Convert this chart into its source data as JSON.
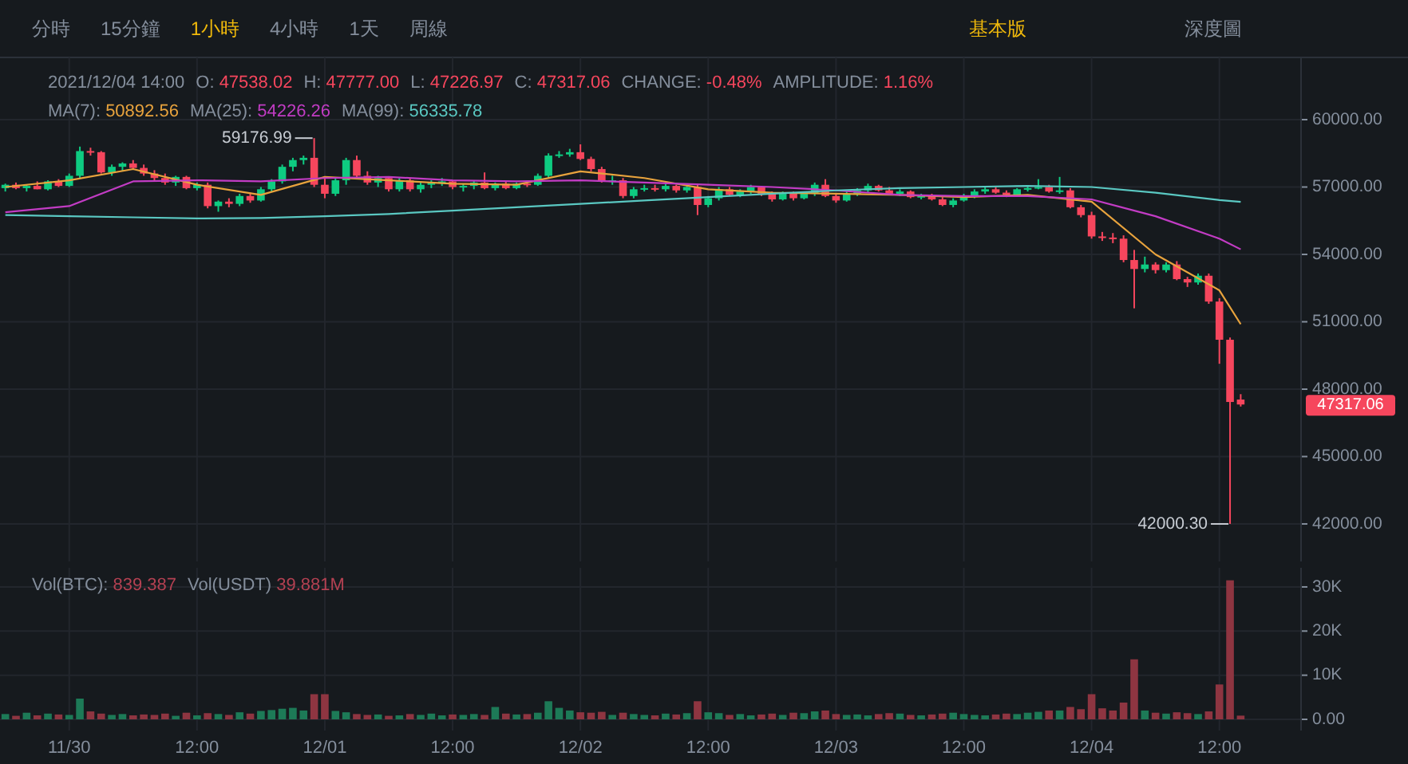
{
  "chart_data": [
    {
      "type": "candlestick",
      "x": [
        "2021-11-29T18:00",
        "2021-11-29T19:00",
        "2021-11-29T20:00",
        "2021-11-29T21:00",
        "2021-11-29T22:00",
        "2021-11-29T23:00",
        "2021-11-30T00:00",
        "2021-11-30T01:00",
        "2021-11-30T02:00",
        "2021-11-30T03:00",
        "2021-11-30T04:00",
        "2021-11-30T05:00",
        "2021-11-30T06:00",
        "2021-11-30T07:00",
        "2021-11-30T08:00",
        "2021-11-30T09:00",
        "2021-11-30T10:00",
        "2021-11-30T11:00",
        "2021-11-30T12:00",
        "2021-11-30T13:00",
        "2021-11-30T14:00",
        "2021-11-30T15:00",
        "2021-11-30T16:00",
        "2021-11-30T17:00",
        "2021-11-30T18:00",
        "2021-11-30T19:00",
        "2021-11-30T20:00",
        "2021-11-30T21:00",
        "2021-11-30T22:00",
        "2021-11-30T23:00",
        "2021-12-01T00:00",
        "2021-12-01T01:00",
        "2021-12-01T02:00",
        "2021-12-01T03:00",
        "2021-12-01T04:00",
        "2021-12-01T05:00",
        "2021-12-01T06:00",
        "2021-12-01T07:00",
        "2021-12-01T08:00",
        "2021-12-01T09:00",
        "2021-12-01T10:00",
        "2021-12-01T11:00",
        "2021-12-01T12:00",
        "2021-12-01T13:00",
        "2021-12-01T14:00",
        "2021-12-01T15:00",
        "2021-12-01T16:00",
        "2021-12-01T17:00",
        "2021-12-01T18:00",
        "2021-12-01T19:00",
        "2021-12-01T20:00",
        "2021-12-01T21:00",
        "2021-12-01T22:00",
        "2021-12-01T23:00",
        "2021-12-02T00:00",
        "2021-12-02T01:00",
        "2021-12-02T02:00",
        "2021-12-02T03:00",
        "2021-12-02T04:00",
        "2021-12-02T05:00",
        "2021-12-02T06:00",
        "2021-12-02T07:00",
        "2021-12-02T08:00",
        "2021-12-02T09:00",
        "2021-12-02T10:00",
        "2021-12-02T11:00",
        "2021-12-02T12:00",
        "2021-12-02T13:00",
        "2021-12-02T14:00",
        "2021-12-02T15:00",
        "2021-12-02T16:00",
        "2021-12-02T17:00",
        "2021-12-02T18:00",
        "2021-12-02T19:00",
        "2021-12-02T20:00",
        "2021-12-02T21:00",
        "2021-12-02T22:00",
        "2021-12-02T23:00",
        "2021-12-03T00:00",
        "2021-12-03T01:00",
        "2021-12-03T02:00",
        "2021-12-03T03:00",
        "2021-12-03T04:00",
        "2021-12-03T05:00",
        "2021-12-03T06:00",
        "2021-12-03T07:00",
        "2021-12-03T08:00",
        "2021-12-03T09:00",
        "2021-12-03T10:00",
        "2021-12-03T11:00",
        "2021-12-03T12:00",
        "2021-12-03T13:00",
        "2021-12-03T14:00",
        "2021-12-03T15:00",
        "2021-12-03T16:00",
        "2021-12-03T17:00",
        "2021-12-03T18:00",
        "2021-12-03T19:00",
        "2021-12-03T20:00",
        "2021-12-03T21:00",
        "2021-12-03T22:00",
        "2021-12-03T23:00",
        "2021-12-04T00:00",
        "2021-12-04T01:00",
        "2021-12-04T02:00",
        "2021-12-04T03:00",
        "2021-12-04T04:00",
        "2021-12-04T05:00",
        "2021-12-04T06:00",
        "2021-12-04T07:00",
        "2021-12-04T08:00",
        "2021-12-04T09:00",
        "2021-12-04T10:00",
        "2021-12-04T11:00",
        "2021-12-04T12:00",
        "2021-12-04T13:00",
        "2021-12-04T14:00"
      ],
      "ohlc": [
        [
          56950,
          57150,
          56800,
          57100
        ],
        [
          57100,
          57200,
          56900,
          56950
        ],
        [
          56950,
          57100,
          56800,
          57050
        ],
        [
          57050,
          57250,
          56900,
          56900
        ],
        [
          56900,
          57300,
          56850,
          57250
        ],
        [
          57250,
          57350,
          57000,
          57050
        ],
        [
          57050,
          57600,
          57000,
          57500
        ],
        [
          57500,
          58800,
          57400,
          58600
        ],
        [
          58600,
          58750,
          58400,
          58550
        ],
        [
          58550,
          58600,
          57600,
          57650
        ],
        [
          57650,
          58000,
          57500,
          57900
        ],
        [
          57900,
          58100,
          57700,
          58050
        ],
        [
          58050,
          58200,
          57800,
          57850
        ],
        [
          57850,
          58000,
          57500,
          57600
        ],
        [
          57600,
          57750,
          57300,
          57400
        ],
        [
          57400,
          57600,
          57100,
          57200
        ],
        [
          57200,
          57500,
          57050,
          57450
        ],
        [
          57450,
          57500,
          56900,
          56950
        ],
        [
          56950,
          57200,
          56850,
          57100
        ],
        [
          57100,
          57200,
          56050,
          56150
        ],
        [
          56150,
          56400,
          55900,
          56350
        ],
        [
          56350,
          56500,
          56100,
          56250
        ],
        [
          56250,
          56700,
          56150,
          56600
        ],
        [
          56600,
          56750,
          56300,
          56400
        ],
        [
          56400,
          57000,
          56350,
          56900
        ],
        [
          56900,
          57350,
          56800,
          57250
        ],
        [
          57250,
          58000,
          57150,
          57900
        ],
        [
          57900,
          58300,
          57700,
          58200
        ],
        [
          58200,
          58400,
          58000,
          58300
        ],
        [
          58300,
          59176.99,
          57000,
          57100
        ],
        [
          57100,
          57400,
          56500,
          56700
        ],
        [
          56700,
          57400,
          56600,
          57300
        ],
        [
          57300,
          58300,
          57100,
          58200
        ],
        [
          58200,
          58400,
          57400,
          57500
        ],
        [
          57500,
          57700,
          57100,
          57200
        ],
        [
          57200,
          57500,
          57000,
          57400
        ],
        [
          57400,
          57450,
          56800,
          56900
        ],
        [
          56900,
          57400,
          56800,
          57300
        ],
        [
          57300,
          57400,
          56800,
          56900
        ],
        [
          56900,
          57200,
          56750,
          57100
        ],
        [
          57100,
          57300,
          56950,
          57200
        ],
        [
          57200,
          57400,
          57050,
          57250
        ],
        [
          57250,
          57300,
          56900,
          57000
        ],
        [
          57000,
          57150,
          56800,
          57050
        ],
        [
          57050,
          57300,
          56900,
          57200
        ],
        [
          57200,
          57650,
          56900,
          56950
        ],
        [
          56950,
          57200,
          56850,
          57150
        ],
        [
          57150,
          57250,
          56900,
          56950
        ],
        [
          56950,
          57200,
          56900,
          57150
        ],
        [
          57150,
          57300,
          57000,
          57100
        ],
        [
          57100,
          57600,
          57050,
          57500
        ],
        [
          57500,
          58500,
          57400,
          58400
        ],
        [
          58400,
          58600,
          58300,
          58450
        ],
        [
          58450,
          58700,
          58350,
          58550
        ],
        [
          58550,
          58900,
          58200,
          58250
        ],
        [
          58250,
          58350,
          57700,
          57800
        ],
        [
          57800,
          57900,
          57200,
          57250
        ],
        [
          57250,
          57500,
          57100,
          57300
        ],
        [
          57300,
          57400,
          56500,
          56600
        ],
        [
          56600,
          57000,
          56500,
          56900
        ],
        [
          56900,
          57100,
          56800,
          56950
        ],
        [
          56950,
          57100,
          56800,
          56900
        ],
        [
          56900,
          57150,
          56800,
          57050
        ],
        [
          57050,
          57100,
          56750,
          56850
        ],
        [
          56850,
          57100,
          56750,
          57000
        ],
        [
          57000,
          57100,
          55750,
          56200
        ],
        [
          56200,
          56600,
          56100,
          56500
        ],
        [
          56500,
          57000,
          56400,
          56900
        ],
        [
          56900,
          57000,
          56600,
          56650
        ],
        [
          56650,
          56900,
          56550,
          56800
        ],
        [
          56800,
          57100,
          56700,
          57000
        ],
        [
          57000,
          57050,
          56600,
          56700
        ],
        [
          56700,
          56800,
          56350,
          56450
        ],
        [
          56450,
          56800,
          56400,
          56700
        ],
        [
          56700,
          56800,
          56400,
          56500
        ],
        [
          56500,
          56800,
          56450,
          56700
        ],
        [
          56700,
          57200,
          56600,
          57100
        ],
        [
          57100,
          57350,
          56550,
          56600
        ],
        [
          56600,
          56700,
          56300,
          56400
        ],
        [
          56400,
          56800,
          56350,
          56700
        ],
        [
          56700,
          56950,
          56600,
          56850
        ],
        [
          56850,
          57150,
          56750,
          57050
        ],
        [
          57050,
          57100,
          56800,
          56850
        ],
        [
          56850,
          57000,
          56650,
          56700
        ],
        [
          56700,
          56900,
          56600,
          56800
        ],
        [
          56800,
          56850,
          56500,
          56550
        ],
        [
          56550,
          56700,
          56450,
          56600
        ],
        [
          56600,
          56700,
          56400,
          56450
        ],
        [
          56450,
          56550,
          56150,
          56200
        ],
        [
          56200,
          56500,
          56100,
          56400
        ],
        [
          56400,
          56700,
          56350,
          56600
        ],
        [
          56600,
          56900,
          56500,
          56800
        ],
        [
          56800,
          57000,
          56700,
          56900
        ],
        [
          56900,
          57000,
          56700,
          56750
        ],
        [
          56750,
          56850,
          56550,
          56650
        ],
        [
          56650,
          56950,
          56600,
          56900
        ],
        [
          56900,
          57050,
          56800,
          56950
        ],
        [
          56950,
          57350,
          56900,
          57000
        ],
        [
          57000,
          57100,
          56750,
          56800
        ],
        [
          56800,
          57450,
          56700,
          56850
        ],
        [
          56850,
          56950,
          56050,
          56100
        ],
        [
          56100,
          56200,
          55650,
          55750
        ],
        [
          55750,
          55900,
          54700,
          54800
        ],
        [
          54800,
          55000,
          54600,
          54750
        ],
        [
          54750,
          54950,
          54500,
          54700
        ],
        [
          54700,
          54850,
          53650,
          53750
        ],
        [
          53750,
          54200,
          51600,
          53350
        ],
        [
          53350,
          53900,
          53200,
          53550
        ],
        [
          53550,
          53650,
          53150,
          53300
        ],
        [
          53300,
          53650,
          53200,
          53550
        ],
        [
          53550,
          53700,
          52850,
          52900
        ],
        [
          52900,
          53000,
          52550,
          52750
        ],
        [
          52750,
          53150,
          52650,
          53050
        ],
        [
          53050,
          53150,
          51800,
          51900
        ],
        [
          51900,
          52050,
          49130,
          50200
        ],
        [
          50200,
          50300,
          42000.3,
          47430
        ],
        [
          47538.02,
          47777,
          47226.97,
          47317.06
        ]
      ],
      "colors": [
        "#0ecb81",
        "#f6465d",
        "#0ecb81",
        "#f6465d",
        "#0ecb81",
        "#f6465d",
        "#0ecb81",
        "#0ecb81",
        "#f6465d",
        "#f6465d",
        "#0ecb81",
        "#0ecb81",
        "#f6465d",
        "#f6465d",
        "#f6465d",
        "#f6465d",
        "#0ecb81",
        "#f6465d",
        "#0ecb81",
        "#f6465d",
        "#0ecb81",
        "#f6465d",
        "#0ecb81",
        "#f6465d",
        "#0ecb81",
        "#0ecb81",
        "#0ecb81",
        "#0ecb81",
        "#0ecb81",
        "#f6465d",
        "#f6465d",
        "#0ecb81",
        "#0ecb81",
        "#f6465d",
        "#f6465d",
        "#0ecb81",
        "#f6465d",
        "#0ecb81",
        "#f6465d",
        "#0ecb81",
        "#0ecb81",
        "#0ecb81",
        "#f6465d",
        "#0ecb81",
        "#0ecb81",
        "#f6465d",
        "#0ecb81",
        "#f6465d",
        "#0ecb81",
        "#f6465d",
        "#0ecb81",
        "#0ecb81",
        "#0ecb81",
        "#0ecb81",
        "#f6465d",
        "#f6465d",
        "#f6465d",
        "#0ecb81",
        "#f6465d",
        "#0ecb81",
        "#0ecb81",
        "#f6465d",
        "#0ecb81",
        "#f6465d",
        "#0ecb81",
        "#f6465d",
        "#0ecb81",
        "#0ecb81",
        "#f6465d",
        "#0ecb81",
        "#0ecb81",
        "#f6465d",
        "#f6465d",
        "#0ecb81",
        "#f6465d",
        "#0ecb81",
        "#0ecb81",
        "#f6465d",
        "#f6465d",
        "#0ecb81",
        "#0ecb81",
        "#0ecb81",
        "#f6465d",
        "#f6465d",
        "#0ecb81",
        "#f6465d",
        "#0ecb81",
        "#f6465d",
        "#f6465d",
        "#0ecb81",
        "#0ecb81",
        "#0ecb81",
        "#0ecb81",
        "#f6465d",
        "#f6465d",
        "#0ecb81",
        "#0ecb81",
        "#0ecb81",
        "#f6465d",
        "#0ecb81",
        "#f6465d",
        "#f6465d",
        "#f6465d",
        "#f6465d",
        "#f6465d",
        "#f6465d",
        "#f6465d",
        "#0ecb81",
        "#f6465d",
        "#0ecb81",
        "#f6465d",
        "#f6465d",
        "#0ecb81",
        "#f6465d",
        "#f6465d",
        "#f6465d",
        "#f6465d"
      ],
      "series": [
        {
          "type": "line",
          "color": "#e8a33d",
          "x": [
            "2021-11-29T18:00",
            "2021-11-30T00:00",
            "2021-11-30T06:00",
            "2021-11-30T12:00",
            "2021-11-30T18:00",
            "2021-12-01T00:00",
            "2021-12-01T06:00",
            "2021-12-01T12:00",
            "2021-12-01T18:00",
            "2021-12-02T00:00",
            "2021-12-02T06:00",
            "2021-12-02T12:00",
            "2021-12-02T18:00",
            "2021-12-03T00:00",
            "2021-12-03T06:00",
            "2021-12-03T12:00",
            "2021-12-03T18:00",
            "2021-12-04T00:00",
            "2021-12-04T06:00",
            "2021-12-04T12:00",
            "2021-12-04T14:00"
          ],
          "values": [
            57000,
            57300,
            57800,
            57100,
            56650,
            57450,
            57300,
            57150,
            57100,
            57700,
            57400,
            56900,
            56750,
            56700,
            56650,
            56550,
            56650,
            56350,
            54000,
            52400,
            50892.56
          ]
        },
        {
          "type": "line",
          "color": "#c23cc4",
          "x": [
            "2021-11-29T18:00",
            "2021-11-30T00:00",
            "2021-11-30T06:00",
            "2021-11-30T12:00",
            "2021-11-30T18:00",
            "2021-12-01T00:00",
            "2021-12-01T06:00",
            "2021-12-01T12:00",
            "2021-12-01T18:00",
            "2021-12-02T00:00",
            "2021-12-02T06:00",
            "2021-12-02T12:00",
            "2021-12-02T18:00",
            "2021-12-03T00:00",
            "2021-12-03T06:00",
            "2021-12-03T12:00",
            "2021-12-03T18:00",
            "2021-12-04T00:00",
            "2021-12-04T06:00",
            "2021-12-04T12:00",
            "2021-12-04T14:00"
          ],
          "values": [
            55880,
            56150,
            57250,
            57300,
            57250,
            57400,
            57450,
            57300,
            57250,
            57300,
            57200,
            57100,
            57000,
            56850,
            56650,
            56600,
            56600,
            56450,
            55700,
            54700,
            54226.26
          ]
        },
        {
          "type": "line",
          "color": "#5ac8c2",
          "x": [
            "2021-11-29T18:00",
            "2021-11-30T00:00",
            "2021-11-30T06:00",
            "2021-11-30T12:00",
            "2021-11-30T18:00",
            "2021-12-01T00:00",
            "2021-12-01T06:00",
            "2021-12-01T12:00",
            "2021-12-01T18:00",
            "2021-12-02T00:00",
            "2021-12-02T06:00",
            "2021-12-02T12:00",
            "2021-12-02T18:00",
            "2021-12-03T00:00",
            "2021-12-03T06:00",
            "2021-12-03T12:00",
            "2021-12-03T18:00",
            "2021-12-04T00:00",
            "2021-12-04T06:00",
            "2021-12-04T12:00",
            "2021-12-04T14:00"
          ],
          "values": [
            55750,
            55700,
            55650,
            55600,
            55620,
            55700,
            55800,
            55950,
            56100,
            56250,
            56400,
            56550,
            56700,
            56850,
            56950,
            57000,
            57050,
            57000,
            56750,
            56420,
            56335.78
          ]
        }
      ],
      "xlim": [
        "2021-11-29T17:30",
        "2021-12-04T19:40"
      ],
      "xticks": [
        "2021-11-30T00:00",
        "2021-11-30T12:00",
        "2021-12-01T00:00",
        "2021-12-01T12:00",
        "2021-12-02T00:00",
        "2021-12-02T12:00",
        "2021-12-03T00:00",
        "2021-12-03T12:00",
        "2021-12-04T00:00",
        "2021-12-04T12:00"
      ],
      "ylim": [
        40330,
        62770
      ],
      "yticks": [
        {
          "value": 42000,
          "label": "42000.00"
        },
        {
          "value": 45000,
          "label": "45000.00"
        },
        {
          "value": 48000,
          "label": "48000.00"
        },
        {
          "value": 51000,
          "label": "51000.00"
        },
        {
          "value": 54000,
          "label": "54000.00"
        },
        {
          "value": 57000,
          "label": "57000.00"
        },
        {
          "value": 60000,
          "label": "60000.00"
        }
      ],
      "tick_labels": "y",
      "grid": true,
      "marker": "none",
      "line_style": "solid",
      "annotations": [
        "分時",
        "15分鐘",
        "1小時",
        "4小時",
        "1天",
        "周線",
        "基本版",
        "深度圖",
        "2021/12/04 14:00",
        "O: 47538.02",
        "H: 47777.00",
        "L: 47226.97",
        "C: 47317.06",
        "CHANGE: -0.48%",
        "AMPLITUDE: 1.16%",
        "MA(7): 50892.56",
        "MA(25): 54226.26",
        "MA(99): 56335.78",
        {
          "text": "59176.99",
          "x": "2021-11-30T23:00",
          "y": 59176.99
        },
        {
          "text": "42000.30",
          "x": "2021-12-04T13:00",
          "y": 42000.3
        },
        "47317.06"
      ]
    },
    {
      "type": "bar",
      "x": [
        "2021-11-29T18:00",
        "2021-11-29T19:00",
        "2021-11-29T20:00",
        "2021-11-29T21:00",
        "2021-11-29T22:00",
        "2021-11-29T23:00",
        "2021-11-30T00:00",
        "2021-11-30T01:00",
        "2021-11-30T02:00",
        "2021-11-30T03:00",
        "2021-11-30T04:00",
        "2021-11-30T05:00",
        "2021-11-30T06:00",
        "2021-11-30T07:00",
        "2021-11-30T08:00",
        "2021-11-30T09:00",
        "2021-11-30T10:00",
        "2021-11-30T11:00",
        "2021-11-30T12:00",
        "2021-11-30T13:00",
        "2021-11-30T14:00",
        "2021-11-30T15:00",
        "2021-11-30T16:00",
        "2021-11-30T17:00",
        "2021-11-30T18:00",
        "2021-11-30T19:00",
        "2021-11-30T20:00",
        "2021-11-30T21:00",
        "2021-11-30T22:00",
        "2021-11-30T23:00",
        "2021-12-01T00:00",
        "2021-12-01T01:00",
        "2021-12-01T02:00",
        "2021-12-01T03:00",
        "2021-12-01T04:00",
        "2021-12-01T05:00",
        "2021-12-01T06:00",
        "2021-12-01T07:00",
        "2021-12-01T08:00",
        "2021-12-01T09:00",
        "2021-12-01T10:00",
        "2021-12-01T11:00",
        "2021-12-01T12:00",
        "2021-12-01T13:00",
        "2021-12-01T14:00",
        "2021-12-01T15:00",
        "2021-12-01T16:00",
        "2021-12-01T17:00",
        "2021-12-01T18:00",
        "2021-12-01T19:00",
        "2021-12-01T20:00",
        "2021-12-01T21:00",
        "2021-12-01T22:00",
        "2021-12-01T23:00",
        "2021-12-02T00:00",
        "2021-12-02T01:00",
        "2021-12-02T02:00",
        "2021-12-02T03:00",
        "2021-12-02T04:00",
        "2021-12-02T05:00",
        "2021-12-02T06:00",
        "2021-12-02T07:00",
        "2021-12-02T08:00",
        "2021-12-02T09:00",
        "2021-12-02T10:00",
        "2021-12-02T11:00",
        "2021-12-02T12:00",
        "2021-12-02T13:00",
        "2021-12-02T14:00",
        "2021-12-02T15:00",
        "2021-12-02T16:00",
        "2021-12-02T17:00",
        "2021-12-02T18:00",
        "2021-12-02T19:00",
        "2021-12-02T20:00",
        "2021-12-02T21:00",
        "2021-12-02T22:00",
        "2021-12-02T23:00",
        "2021-12-03T00:00",
        "2021-12-03T01:00",
        "2021-12-03T02:00",
        "2021-12-03T03:00",
        "2021-12-03T04:00",
        "2021-12-03T05:00",
        "2021-12-03T06:00",
        "2021-12-03T07:00",
        "2021-12-03T08:00",
        "2021-12-03T09:00",
        "2021-12-03T10:00",
        "2021-12-03T11:00",
        "2021-12-03T12:00",
        "2021-12-03T13:00",
        "2021-12-03T14:00",
        "2021-12-03T15:00",
        "2021-12-03T16:00",
        "2021-12-03T17:00",
        "2021-12-03T18:00",
        "2021-12-03T19:00",
        "2021-12-03T20:00",
        "2021-12-03T21:00",
        "2021-12-03T22:00",
        "2021-12-03T23:00",
        "2021-12-04T00:00",
        "2021-12-04T01:00",
        "2021-12-04T02:00",
        "2021-12-04T03:00",
        "2021-12-04T04:00",
        "2021-12-04T05:00",
        "2021-12-04T06:00",
        "2021-12-04T07:00",
        "2021-12-04T08:00",
        "2021-12-04T09:00",
        "2021-12-04T10:00",
        "2021-12-04T11:00",
        "2021-12-04T12:00",
        "2021-12-04T13:00",
        "2021-12-04T14:00"
      ],
      "values": [
        1200,
        800,
        1500,
        900,
        1300,
        1100,
        1000,
        4700,
        1800,
        1300,
        1000,
        1200,
        900,
        1100,
        1000,
        1300,
        800,
        1500,
        900,
        1400,
        1200,
        1000,
        1600,
        1300,
        1900,
        2100,
        2400,
        2600,
        2000,
        5700,
        5700,
        1900,
        1600,
        1200,
        1000,
        1100,
        800,
        900,
        1200,
        1000,
        1300,
        900,
        1100,
        1000,
        1200,
        1000,
        2800,
        1300,
        1100,
        1200,
        1500,
        4100,
        2600,
        2000,
        1600,
        1500,
        1700,
        1000,
        1500,
        1200,
        1000,
        900,
        1300,
        1100,
        1400,
        4100,
        1600,
        1400,
        1000,
        1200,
        900,
        1100,
        1300,
        1000,
        1500,
        1400,
        1800,
        2000,
        1200,
        1000,
        1100,
        900,
        1200,
        1400,
        1300,
        1000,
        900,
        1100,
        1300,
        1500,
        1200,
        1000,
        900,
        1100,
        1300,
        1200,
        1500,
        1700,
        2000,
        2000,
        2800,
        2300,
        5700,
        2500,
        2000,
        3800,
        13600,
        2000,
        1500,
        1300,
        1600,
        1400,
        1200,
        1800,
        7900,
        31500,
        839.387
      ],
      "colors": [
        "#1d7a57",
        "#8e3541",
        "#1d7a57",
        "#8e3541",
        "#1d7a57",
        "#8e3541",
        "#1d7a57",
        "#1d7a57",
        "#8e3541",
        "#8e3541",
        "#1d7a57",
        "#1d7a57",
        "#8e3541",
        "#8e3541",
        "#8e3541",
        "#8e3541",
        "#1d7a57",
        "#8e3541",
        "#1d7a57",
        "#8e3541",
        "#1d7a57",
        "#8e3541",
        "#1d7a57",
        "#8e3541",
        "#1d7a57",
        "#1d7a57",
        "#1d7a57",
        "#1d7a57",
        "#1d7a57",
        "#8e3541",
        "#8e3541",
        "#1d7a57",
        "#1d7a57",
        "#8e3541",
        "#8e3541",
        "#1d7a57",
        "#8e3541",
        "#1d7a57",
        "#8e3541",
        "#1d7a57",
        "#1d7a57",
        "#1d7a57",
        "#8e3541",
        "#1d7a57",
        "#1d7a57",
        "#8e3541",
        "#1d7a57",
        "#8e3541",
        "#1d7a57",
        "#8e3541",
        "#1d7a57",
        "#1d7a57",
        "#1d7a57",
        "#1d7a57",
        "#8e3541",
        "#8e3541",
        "#8e3541",
        "#1d7a57",
        "#8e3541",
        "#1d7a57",
        "#1d7a57",
        "#8e3541",
        "#1d7a57",
        "#8e3541",
        "#1d7a57",
        "#8e3541",
        "#1d7a57",
        "#1d7a57",
        "#8e3541",
        "#1d7a57",
        "#1d7a57",
        "#8e3541",
        "#8e3541",
        "#1d7a57",
        "#8e3541",
        "#1d7a57",
        "#1d7a57",
        "#8e3541",
        "#8e3541",
        "#1d7a57",
        "#1d7a57",
        "#1d7a57",
        "#8e3541",
        "#8e3541",
        "#1d7a57",
        "#8e3541",
        "#1d7a57",
        "#8e3541",
        "#8e3541",
        "#1d7a57",
        "#1d7a57",
        "#1d7a57",
        "#1d7a57",
        "#8e3541",
        "#8e3541",
        "#1d7a57",
        "#1d7a57",
        "#1d7a57",
        "#8e3541",
        "#1d7a57",
        "#8e3541",
        "#8e3541",
        "#8e3541",
        "#8e3541",
        "#8e3541",
        "#8e3541",
        "#8e3541",
        "#1d7a57",
        "#8e3541",
        "#1d7a57",
        "#8e3541",
        "#8e3541",
        "#1d7a57",
        "#8e3541",
        "#8e3541",
        "#8e3541",
        "#8e3541"
      ],
      "xlim": [
        "2021-11-29T17:30",
        "2021-12-04T19:40"
      ],
      "xticks": [
        {
          "value": "2021-11-30T00:00",
          "label": "11/30"
        },
        {
          "value": "2021-11-30T12:00",
          "label": "12:00"
        },
        {
          "value": "2021-12-01T00:00",
          "label": "12/01"
        },
        {
          "value": "2021-12-01T12:00",
          "label": "12:00"
        },
        {
          "value": "2021-12-02T00:00",
          "label": "12/02"
        },
        {
          "value": "2021-12-02T12:00",
          "label": "12:00"
        },
        {
          "value": "2021-12-03T00:00",
          "label": "12/03"
        },
        {
          "value": "2021-12-03T12:00",
          "label": "12:00"
        },
        {
          "value": "2021-12-04T00:00",
          "label": "12/04"
        },
        {
          "value": "2021-12-04T12:00",
          "label": "12:00"
        }
      ],
      "ylim": [
        -2530,
        34330
      ],
      "yticks": [
        {
          "value": 0,
          "label": "0.00"
        },
        {
          "value": 10000,
          "label": "10K"
        },
        {
          "value": 20000,
          "label": "20K"
        },
        {
          "value": 30000,
          "label": "30K"
        }
      ],
      "grid": true,
      "annotations": [
        "Vol(BTC): 839.387",
        "Vol(USDT) 39.881M"
      ]
    }
  ]
}
